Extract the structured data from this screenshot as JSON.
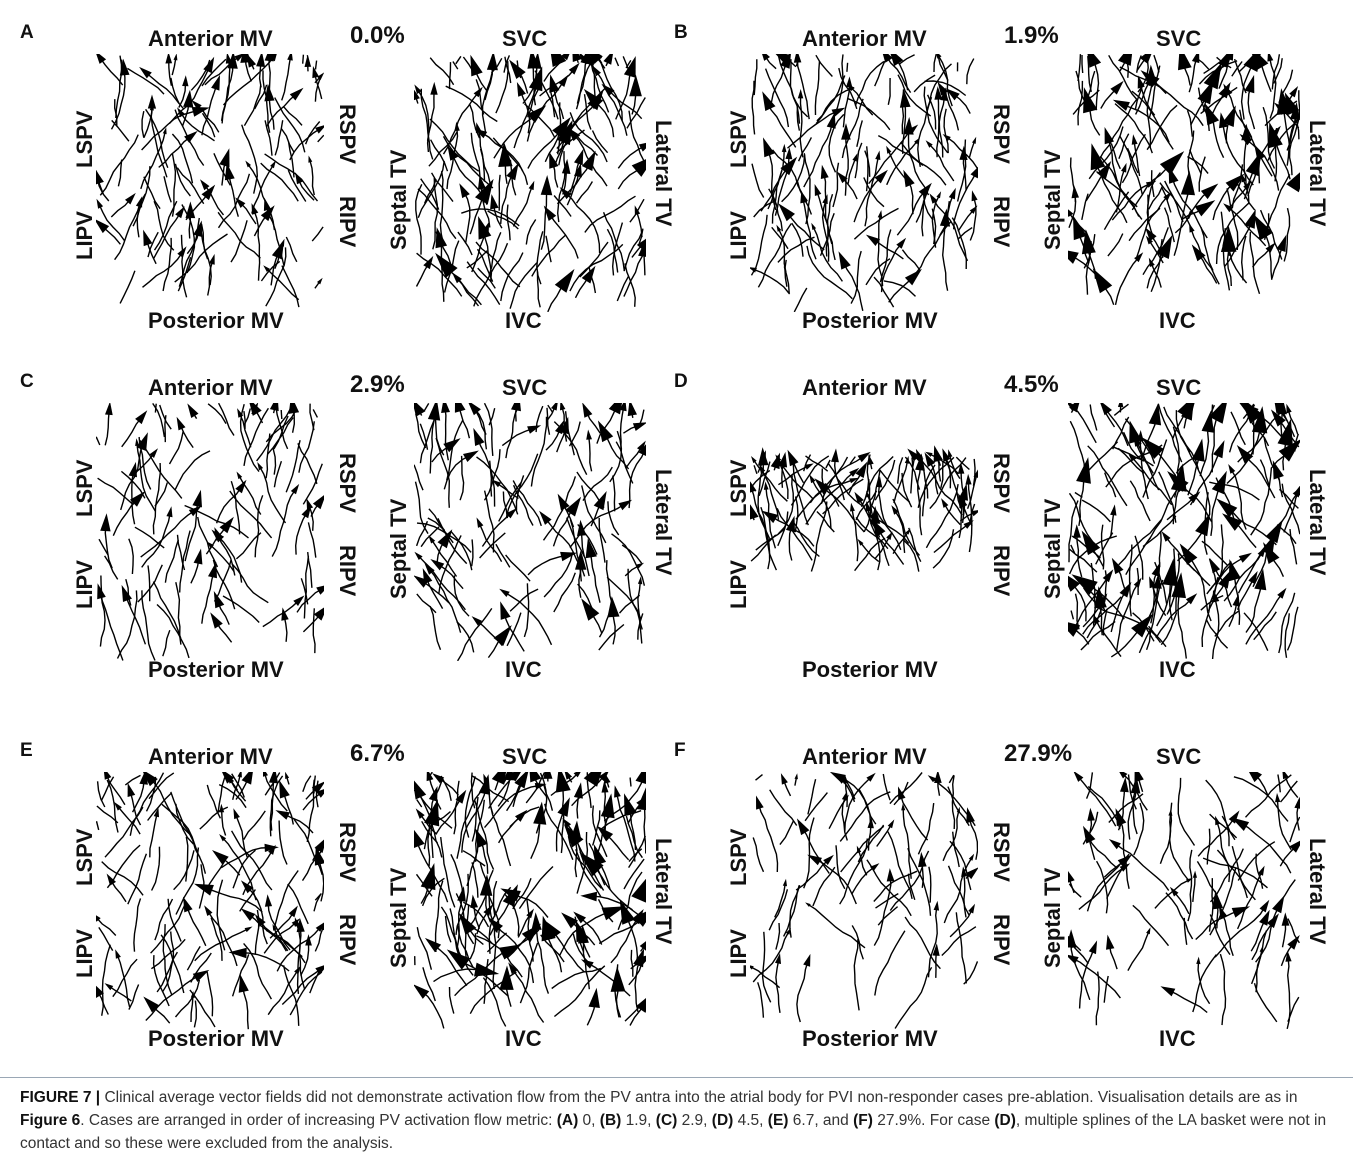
{
  "labels": {
    "anterior": "Anterior MV",
    "posterior": "Posterior MV",
    "svc": "SVC",
    "ivc": "IVC",
    "lspv": "LSPV",
    "lipv": "LIPV",
    "rspv": "RSPV",
    "ripv": "RIPV",
    "septal": "Septal TV",
    "lateral": "Lateral TV"
  },
  "panels": [
    {
      "letter": "A",
      "metric": "0.0%",
      "la_density": 0.55,
      "ra_density": 0.85,
      "la_coverage": "full"
    },
    {
      "letter": "B",
      "metric": "1.9%",
      "la_density": 0.7,
      "ra_density": 0.9,
      "la_coverage": "full"
    },
    {
      "letter": "C",
      "metric": "2.9%",
      "la_density": 0.45,
      "ra_density": 0.6,
      "la_coverage": "full"
    },
    {
      "letter": "D",
      "metric": "4.5%",
      "la_density": 0.5,
      "ra_density": 0.95,
      "la_coverage": "partial"
    },
    {
      "letter": "E",
      "metric": "6.7%",
      "la_density": 0.6,
      "ra_density": 0.95,
      "la_coverage": "full"
    },
    {
      "letter": "F",
      "metric": "27.9%",
      "la_density": 0.25,
      "ra_density": 0.3,
      "la_coverage": "full"
    }
  ],
  "caption": {
    "label": "FIGURE 7 |",
    "s1": " Clinical average vector fields did not demonstrate activation flow from the PV antra into the atrial body for PVI non-responder cases pre-ablation. Visualisation details are as in ",
    "fig6": "Figure 6",
    "s2": ". Cases are arranged in order of increasing PV activation flow metric: ",
    "a": "(A)",
    "va": " 0, ",
    "b": "(B)",
    "vb": " 1.9, ",
    "c": "(C)",
    "vc": " 2.9, ",
    "d": "(D)",
    "vd": " 4.5, ",
    "e": "(E)",
    "ve": " 6.7, and ",
    "f": "(F)",
    "vf": " 27.9%. For case ",
    "d2": "(D)",
    "s3": ", multiple splines of the LA basket were not in contact and so these were excluded from the analysis."
  }
}
